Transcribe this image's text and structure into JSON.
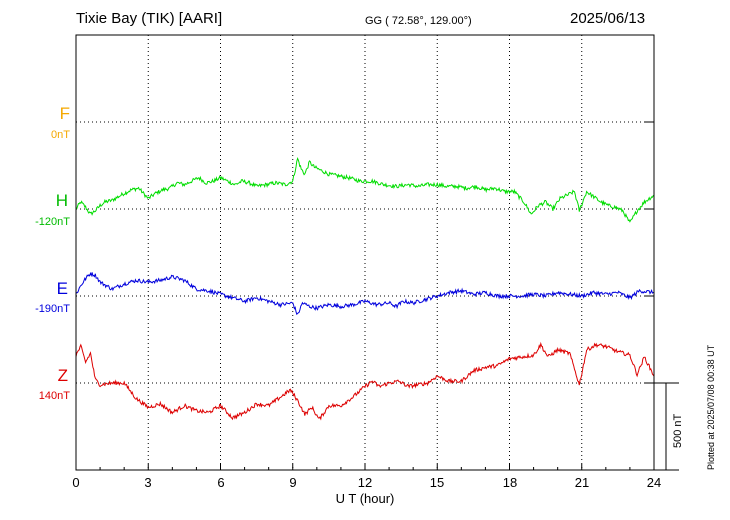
{
  "header": {
    "station": "Tixie Bay (TIK)  [AARI]",
    "coords": "GG ( 72.58°, 129.00°)",
    "date": "2025/06/13"
  },
  "x_axis": {
    "label": "U T (hour)",
    "ticks": [
      "0",
      "3",
      "6",
      "9",
      "12",
      "15",
      "18",
      "21",
      "24"
    ]
  },
  "scale_bar": {
    "label": "500 nT"
  },
  "footer": {
    "plotted": "Plotted at 2025/07/08 00:38 UT"
  },
  "colors": {
    "F": "#f5a800",
    "H": "#00dd00",
    "E": "#0000dd",
    "Z": "#dd0000"
  },
  "chart_data": {
    "type": "line",
    "x_unit": "hour UT",
    "xlim": [
      0,
      24
    ],
    "scale_nT_per_division": 500,
    "series": [
      {
        "name": "F",
        "baseline_label": "0nT",
        "baseline": 0,
        "points": []
      },
      {
        "name": "H",
        "baseline_label": "-120nT",
        "baseline": -120,
        "points": [
          [
            0,
            -120
          ],
          [
            0.2,
            -80
          ],
          [
            0.4,
            -110
          ],
          [
            0.6,
            -150
          ],
          [
            0.8,
            -130
          ],
          [
            1.0,
            -100
          ],
          [
            1.2,
            -80
          ],
          [
            1.5,
            -70
          ],
          [
            2.0,
            -30
          ],
          [
            2.3,
            -10
          ],
          [
            2.6,
            0
          ],
          [
            3.0,
            -60
          ],
          [
            3.3,
            -30
          ],
          [
            3.6,
            -10
          ],
          [
            3.9,
            0
          ],
          [
            4.2,
            30
          ],
          [
            4.5,
            20
          ],
          [
            4.8,
            40
          ],
          [
            5.1,
            60
          ],
          [
            5.4,
            30
          ],
          [
            5.7,
            40
          ],
          [
            6.0,
            60
          ],
          [
            6.3,
            40
          ],
          [
            6.6,
            20
          ],
          [
            6.9,
            40
          ],
          [
            7.2,
            30
          ],
          [
            7.5,
            10
          ],
          [
            7.9,
            20
          ],
          [
            8.3,
            30
          ],
          [
            8.7,
            20
          ],
          [
            9.0,
            40
          ],
          [
            9.2,
            170
          ],
          [
            9.35,
            110
          ],
          [
            9.5,
            80
          ],
          [
            9.7,
            150
          ],
          [
            9.9,
            120
          ],
          [
            10.2,
            100
          ],
          [
            10.5,
            80
          ],
          [
            10.9,
            70
          ],
          [
            11.3,
            60
          ],
          [
            11.8,
            40
          ],
          [
            12.3,
            40
          ],
          [
            12.8,
            20
          ],
          [
            13.3,
            10
          ],
          [
            13.8,
            20
          ],
          [
            14.2,
            10
          ],
          [
            14.6,
            20
          ],
          [
            15.0,
            20
          ],
          [
            15.4,
            10
          ],
          [
            15.8,
            10
          ],
          [
            16.2,
            0
          ],
          [
            16.6,
            10
          ],
          [
            17.0,
            -10
          ],
          [
            17.4,
            0
          ],
          [
            17.8,
            -20
          ],
          [
            18.2,
            -20
          ],
          [
            18.6,
            -80
          ],
          [
            18.9,
            -150
          ],
          [
            19.2,
            -100
          ],
          [
            19.5,
            -80
          ],
          [
            19.8,
            -120
          ],
          [
            20.1,
            -60
          ],
          [
            20.4,
            -40
          ],
          [
            20.7,
            -20
          ],
          [
            20.9,
            -130
          ],
          [
            21.2,
            -20
          ],
          [
            21.5,
            -50
          ],
          [
            21.8,
            -80
          ],
          [
            22.1,
            -100
          ],
          [
            22.4,
            -110
          ],
          [
            22.7,
            -130
          ],
          [
            23.0,
            -200
          ],
          [
            23.3,
            -130
          ],
          [
            23.6,
            -80
          ],
          [
            24.0,
            -40
          ]
        ]
      },
      {
        "name": "E",
        "baseline_label": "-190nT",
        "baseline": -190,
        "points": [
          [
            0,
            -180
          ],
          [
            0.2,
            -130
          ],
          [
            0.4,
            -90
          ],
          [
            0.6,
            -60
          ],
          [
            0.8,
            -70
          ],
          [
            1.0,
            -110
          ],
          [
            1.5,
            -150
          ],
          [
            2.0,
            -120
          ],
          [
            2.5,
            -100
          ],
          [
            3.0,
            -110
          ],
          [
            3.5,
            -100
          ],
          [
            4.0,
            -80
          ],
          [
            4.5,
            -100
          ],
          [
            5.0,
            -150
          ],
          [
            5.5,
            -160
          ],
          [
            6.0,
            -180
          ],
          [
            6.5,
            -200
          ],
          [
            7.0,
            -220
          ],
          [
            7.5,
            -200
          ],
          [
            8.0,
            -220
          ],
          [
            8.5,
            -240
          ],
          [
            9.0,
            -230
          ],
          [
            9.2,
            -300
          ],
          [
            9.4,
            -230
          ],
          [
            9.7,
            -250
          ],
          [
            10.0,
            -260
          ],
          [
            10.5,
            -240
          ],
          [
            11.0,
            -250
          ],
          [
            11.5,
            -240
          ],
          [
            12.0,
            -220
          ],
          [
            12.5,
            -240
          ],
          [
            13.0,
            -230
          ],
          [
            13.3,
            -250
          ],
          [
            13.6,
            -220
          ],
          [
            14.0,
            -230
          ],
          [
            14.5,
            -210
          ],
          [
            15.0,
            -190
          ],
          [
            15.5,
            -170
          ],
          [
            16.0,
            -160
          ],
          [
            16.5,
            -180
          ],
          [
            17.0,
            -170
          ],
          [
            17.5,
            -190
          ],
          [
            18.0,
            -190
          ],
          [
            18.5,
            -190
          ],
          [
            19.0,
            -180
          ],
          [
            19.5,
            -190
          ],
          [
            20.0,
            -170
          ],
          [
            20.5,
            -180
          ],
          [
            21.0,
            -190
          ],
          [
            21.5,
            -170
          ],
          [
            22.0,
            -180
          ],
          [
            22.5,
            -170
          ],
          [
            23.0,
            -200
          ],
          [
            23.4,
            -160
          ],
          [
            24.0,
            -170
          ]
        ]
      },
      {
        "name": "Z",
        "baseline_label": "140nT",
        "baseline": 140,
        "points": [
          [
            0,
            300
          ],
          [
            0.2,
            350
          ],
          [
            0.4,
            260
          ],
          [
            0.6,
            310
          ],
          [
            0.8,
            160
          ],
          [
            1.0,
            130
          ],
          [
            1.5,
            140
          ],
          [
            2.0,
            140
          ],
          [
            2.5,
            50
          ],
          [
            3.0,
            0
          ],
          [
            3.5,
            20
          ],
          [
            4.0,
            -30
          ],
          [
            4.5,
            10
          ],
          [
            5.0,
            -20
          ],
          [
            5.5,
            -30
          ],
          [
            6.0,
            10
          ],
          [
            6.5,
            -60
          ],
          [
            7.0,
            -30
          ],
          [
            7.5,
            20
          ],
          [
            8.0,
            10
          ],
          [
            8.5,
            60
          ],
          [
            8.9,
            100
          ],
          [
            9.2,
            40
          ],
          [
            9.5,
            -40
          ],
          [
            9.8,
            0
          ],
          [
            10.1,
            -70
          ],
          [
            10.5,
            10
          ],
          [
            11.0,
            10
          ],
          [
            11.5,
            60
          ],
          [
            12.0,
            120
          ],
          [
            12.3,
            150
          ],
          [
            12.6,
            120
          ],
          [
            13.0,
            140
          ],
          [
            13.4,
            150
          ],
          [
            13.8,
            120
          ],
          [
            14.2,
            130
          ],
          [
            14.6,
            140
          ],
          [
            15.0,
            180
          ],
          [
            15.5,
            150
          ],
          [
            16.0,
            150
          ],
          [
            16.5,
            210
          ],
          [
            17.0,
            230
          ],
          [
            17.5,
            240
          ],
          [
            18.0,
            280
          ],
          [
            18.5,
            290
          ],
          [
            19.0,
            300
          ],
          [
            19.3,
            360
          ],
          [
            19.6,
            290
          ],
          [
            20.0,
            330
          ],
          [
            20.5,
            310
          ],
          [
            20.9,
            130
          ],
          [
            21.2,
            330
          ],
          [
            21.6,
            360
          ],
          [
            22.0,
            350
          ],
          [
            22.5,
            320
          ],
          [
            23.0,
            300
          ],
          [
            23.3,
            190
          ],
          [
            23.6,
            290
          ],
          [
            24.0,
            180
          ]
        ]
      }
    ]
  }
}
